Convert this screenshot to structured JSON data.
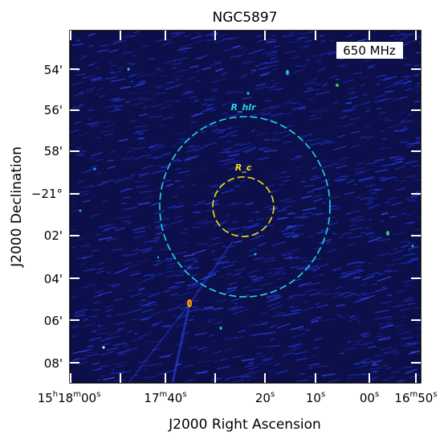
{
  "title": "NGC5897",
  "frequency_badge": "650 MHz",
  "x_axis_label": "J2000 Right Ascension",
  "y_axis_label": "J2000 Declination",
  "x_tick_labels": [
    {
      "h": "15",
      "hs": "h",
      "m": "18",
      "ms": "m",
      "s": "00",
      "ss": "s"
    },
    {
      "m": "17",
      "ms": "m",
      "s": "40",
      "ss": "s"
    },
    {
      "s": "20",
      "ss": "s"
    },
    {
      "s": "10",
      "ss": "s"
    },
    {
      "s": "00",
      "ss": "s"
    },
    {
      "m": "16",
      "ms": "m",
      "s": "50",
      "ss": "s"
    }
  ],
  "y_tick_labels": [
    "54'",
    "56'",
    "58'",
    "−21°",
    "02'",
    "04'",
    "06'",
    "08'"
  ],
  "circles": [
    {
      "label": "R_hlr",
      "color": "#22d6e6"
    },
    {
      "label": "R_c",
      "color": "#f2e313"
    }
  ],
  "colors": {
    "background": "#0d0f4a",
    "noise": "#1f36d8",
    "frame": "#000000"
  }
}
